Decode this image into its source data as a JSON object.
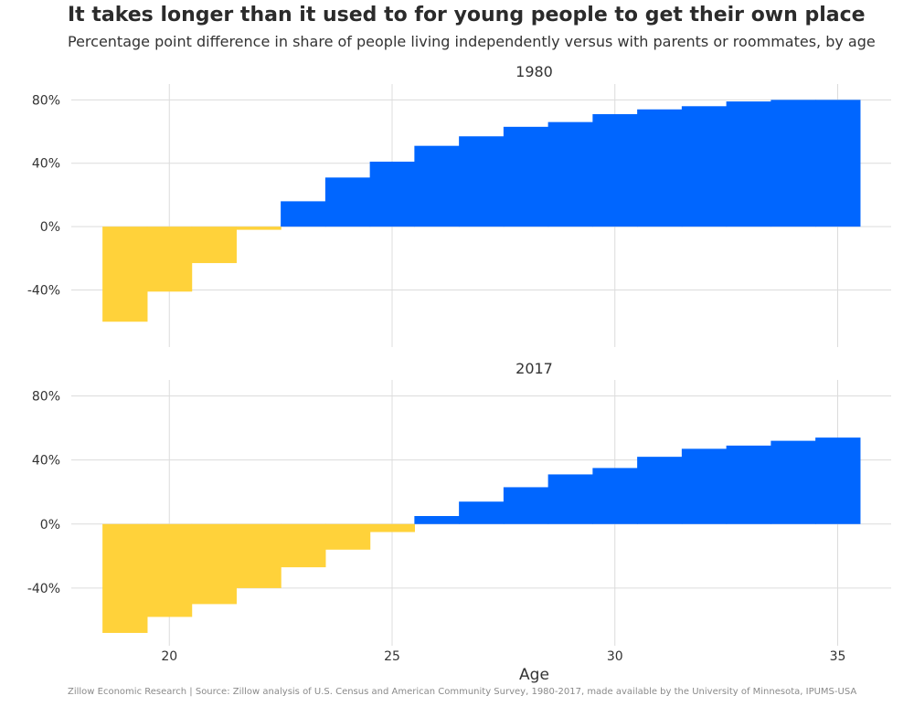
{
  "header": {
    "title": "It takes longer than it used to for young people to get their own place",
    "subtitle": "Percentage point difference in share of people living independently versus with parents or roommates, by age"
  },
  "footer": {
    "caption": "Zillow Economic Research | Source: Zillow analysis of U.S. Census and American Community Survey, 1980-2017, made available by the University of Minnesota, IPUMS-USA"
  },
  "colors": {
    "positive": "#0066ff",
    "negative": "#ffd23a",
    "grid": "#dcdcdc",
    "text": "#333333"
  },
  "chart_data": {
    "type": "bar",
    "xlabel": "Age",
    "ylabel": "",
    "x_ticks": [
      20,
      25,
      30,
      35
    ],
    "y_ticks": [
      -40,
      0,
      40,
      80
    ],
    "y_tick_labels": [
      "-40%",
      "0%",
      "40%",
      "80%"
    ],
    "xlim": [
      17.8,
      36.2
    ],
    "ylim": [
      -76,
      90
    ],
    "grid": true,
    "legend": "none",
    "categories": [
      19,
      20,
      21,
      22,
      23,
      24,
      25,
      26,
      27,
      28,
      29,
      30,
      31,
      32,
      33,
      34,
      35
    ],
    "panels": [
      {
        "name": "1980",
        "values": [
          -60,
          -41,
          -23,
          -2,
          16,
          31,
          41,
          51,
          57,
          63,
          66,
          71,
          74,
          76,
          79,
          80,
          80
        ]
      },
      {
        "name": "2017",
        "values": [
          -68,
          -58,
          -50,
          -40,
          -27,
          -16,
          -5,
          5,
          14,
          23,
          31,
          35,
          42,
          47,
          49,
          52,
          54
        ]
      }
    ]
  }
}
